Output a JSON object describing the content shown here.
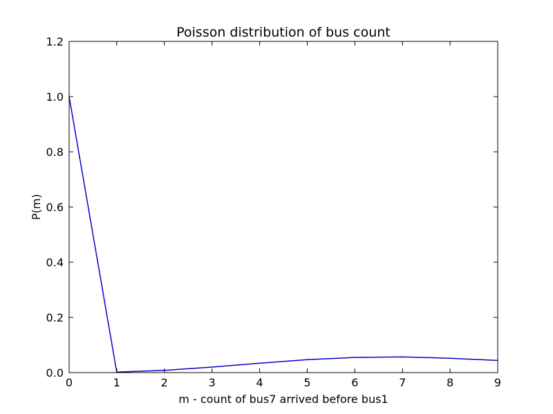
{
  "chart_data": {
    "type": "line",
    "title": "Poisson distribution of bus count",
    "xlabel": "m - count of bus7 arrived before bus1",
    "ylabel": "P(m)",
    "xlim": [
      0,
      9
    ],
    "ylim": [
      0,
      1.2
    ],
    "xticks": [
      "0",
      "1",
      "2",
      "3",
      "4",
      "5",
      "6",
      "7",
      "8",
      "9"
    ],
    "yticks": [
      "0.0",
      "0.2",
      "0.4",
      "0.6",
      "0.8",
      "1.0",
      "1.2"
    ],
    "grid": false,
    "legend": "none",
    "series": [
      {
        "color": "#0000cc",
        "x": [
          0,
          1,
          2,
          3,
          4,
          5,
          6,
          7,
          8,
          9
        ],
        "y": [
          1.0,
          0.002,
          0.008,
          0.02,
          0.034,
          0.047,
          0.055,
          0.057,
          0.052,
          0.044
        ]
      }
    ]
  }
}
